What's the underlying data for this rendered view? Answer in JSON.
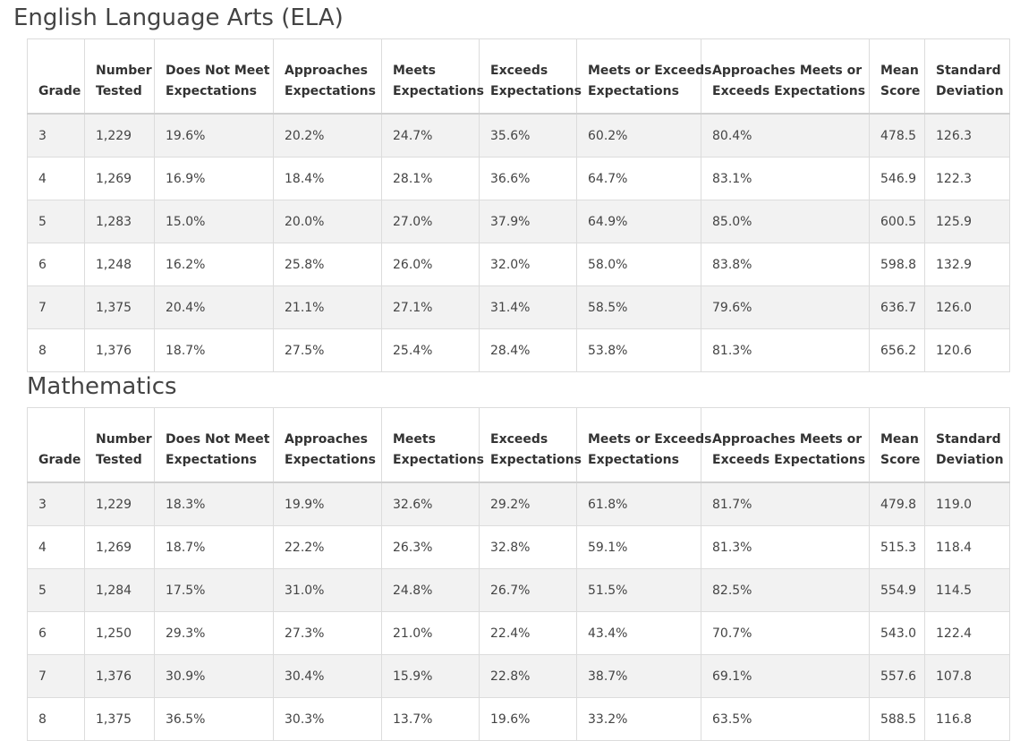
{
  "headers": [
    [
      "Grade",
      ""
    ],
    [
      "Number",
      "Tested"
    ],
    [
      "Does Not Meet",
      "Expectations"
    ],
    [
      "Approaches",
      "Expectations"
    ],
    [
      "Meets",
      "Expectations"
    ],
    [
      "Exceeds",
      "Expectations"
    ],
    [
      "Meets or Exceeds",
      "Expectations"
    ],
    [
      "Approaches Meets or",
      "Exceeds Expectations"
    ],
    [
      "Mean",
      "Score"
    ],
    [
      "Standard",
      "Deviation"
    ]
  ],
  "ela": {
    "title": "English Language Arts (ELA)",
    "rows": [
      [
        "3",
        "1,229",
        "19.6%",
        "20.2%",
        "24.7%",
        "35.6%",
        "60.2%",
        "80.4%",
        "478.5",
        "126.3"
      ],
      [
        "4",
        "1,269",
        "16.9%",
        "18.4%",
        "28.1%",
        "36.6%",
        "64.7%",
        "83.1%",
        "546.9",
        "122.3"
      ],
      [
        "5",
        "1,283",
        "15.0%",
        "20.0%",
        "27.0%",
        "37.9%",
        "64.9%",
        "85.0%",
        "600.5",
        "125.9"
      ],
      [
        "6",
        "1,248",
        "16.2%",
        "25.8%",
        "26.0%",
        "32.0%",
        "58.0%",
        "83.8%",
        "598.8",
        "132.9"
      ],
      [
        "7",
        "1,375",
        "20.4%",
        "21.1%",
        "27.1%",
        "31.4%",
        "58.5%",
        "79.6%",
        "636.7",
        "126.0"
      ],
      [
        "8",
        "1,376",
        "18.7%",
        "27.5%",
        "25.4%",
        "28.4%",
        "53.8%",
        "81.3%",
        "656.2",
        "120.6"
      ]
    ]
  },
  "math": {
    "title": "Mathematics",
    "rows": [
      [
        "3",
        "1,229",
        "18.3%",
        "19.9%",
        "32.6%",
        "29.2%",
        "61.8%",
        "81.7%",
        "479.8",
        "119.0"
      ],
      [
        "4",
        "1,269",
        "18.7%",
        "22.2%",
        "26.3%",
        "32.8%",
        "59.1%",
        "81.3%",
        "515.3",
        "118.4"
      ],
      [
        "5",
        "1,284",
        "17.5%",
        "31.0%",
        "24.8%",
        "26.7%",
        "51.5%",
        "82.5%",
        "554.9",
        "114.5"
      ],
      [
        "6",
        "1,250",
        "29.3%",
        "27.3%",
        "21.0%",
        "22.4%",
        "43.4%",
        "70.7%",
        "543.0",
        "122.4"
      ],
      [
        "7",
        "1,376",
        "30.9%",
        "30.4%",
        "15.9%",
        "22.8%",
        "38.7%",
        "69.1%",
        "557.6",
        "107.8"
      ],
      [
        "8",
        "1,375",
        "36.5%",
        "30.3%",
        "13.7%",
        "19.6%",
        "33.2%",
        "63.5%",
        "588.5",
        "116.8"
      ]
    ]
  }
}
